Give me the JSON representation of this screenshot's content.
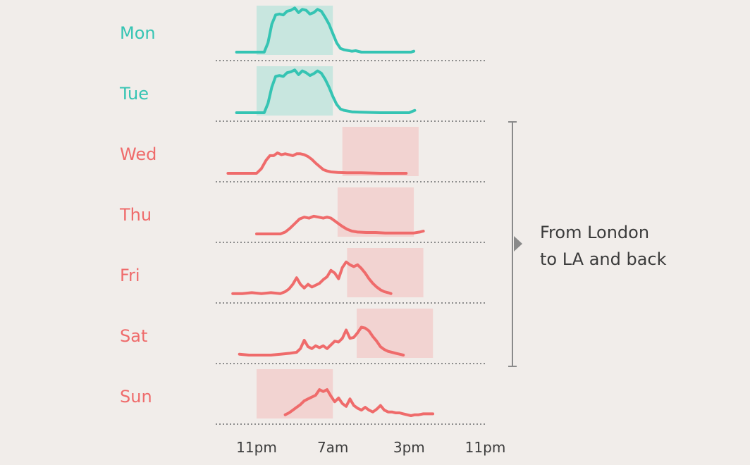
{
  "chart_data": {
    "type": "line",
    "colors": {
      "home": "#35c4b3",
      "home_fill": "#c8e6df",
      "travel": "#ef6b6b",
      "travel_fill": "#f2d3d1",
      "baseline": "#8c8c8c",
      "bracket": "#8a8a8a"
    },
    "x_ticks": [
      "11pm",
      "7am",
      "3pm",
      "11pm"
    ],
    "days": [
      {
        "label": "Mon",
        "group": "home",
        "band": [
          "11pm",
          "4am"
        ],
        "points": [
          [
            -2.1,
            0
          ],
          [
            0.8,
            0
          ],
          [
            1.2,
            0.2
          ],
          [
            1.6,
            0.6
          ],
          [
            2.0,
            0.8
          ],
          [
            2.4,
            0.82
          ],
          [
            2.8,
            0.8
          ],
          [
            3.2,
            0.88
          ],
          [
            3.6,
            0.9
          ],
          [
            4.0,
            0.95
          ],
          [
            4.4,
            0.85
          ],
          [
            4.8,
            0.92
          ],
          [
            5.2,
            0.9
          ],
          [
            5.6,
            0.82
          ],
          [
            6.0,
            0.85
          ],
          [
            6.4,
            0.92
          ],
          [
            6.8,
            0.88
          ],
          [
            7.2,
            0.75
          ],
          [
            7.6,
            0.6
          ],
          [
            8.0,
            0.4
          ],
          [
            8.4,
            0.2
          ],
          [
            8.8,
            0.08
          ],
          [
            9.2,
            0.05
          ],
          [
            10.0,
            0.02
          ],
          [
            10.4,
            0.03
          ],
          [
            11.0,
            0
          ],
          [
            13.0,
            0
          ],
          [
            15.0,
            0
          ],
          [
            16.2,
            0
          ],
          [
            16.5,
            0.02
          ]
        ]
      },
      {
        "label": "Tue",
        "group": "home",
        "band": [
          "11pm",
          "4am"
        ],
        "points": [
          [
            -2.1,
            0
          ],
          [
            0.8,
            0
          ],
          [
            1.2,
            0.2
          ],
          [
            1.6,
            0.55
          ],
          [
            2.0,
            0.78
          ],
          [
            2.4,
            0.8
          ],
          [
            2.8,
            0.78
          ],
          [
            3.2,
            0.86
          ],
          [
            3.6,
            0.88
          ],
          [
            4.0,
            0.92
          ],
          [
            4.4,
            0.82
          ],
          [
            4.8,
            0.9
          ],
          [
            5.2,
            0.86
          ],
          [
            5.6,
            0.8
          ],
          [
            6.0,
            0.84
          ],
          [
            6.4,
            0.9
          ],
          [
            6.8,
            0.85
          ],
          [
            7.2,
            0.72
          ],
          [
            7.6,
            0.55
          ],
          [
            8.0,
            0.35
          ],
          [
            8.4,
            0.18
          ],
          [
            8.8,
            0.08
          ],
          [
            9.2,
            0.05
          ],
          [
            10.0,
            0.02
          ],
          [
            11.0,
            0.01
          ],
          [
            13.0,
            0
          ],
          [
            15.0,
            0
          ],
          [
            16.0,
            0
          ],
          [
            16.6,
            0.05
          ]
        ]
      },
      {
        "label": "Wed",
        "group": "travel",
        "band": [
          "8am",
          "1pm"
        ],
        "points": [
          [
            -3.0,
            0
          ],
          [
            0,
            0
          ],
          [
            0.5,
            0.1
          ],
          [
            1.0,
            0.28
          ],
          [
            1.4,
            0.38
          ],
          [
            1.8,
            0.38
          ],
          [
            2.2,
            0.44
          ],
          [
            2.6,
            0.4
          ],
          [
            3.0,
            0.42
          ],
          [
            3.4,
            0.4
          ],
          [
            3.8,
            0.38
          ],
          [
            4.2,
            0.42
          ],
          [
            4.6,
            0.42
          ],
          [
            5.0,
            0.4
          ],
          [
            5.4,
            0.36
          ],
          [
            5.8,
            0.3
          ],
          [
            6.2,
            0.22
          ],
          [
            6.6,
            0.15
          ],
          [
            7.0,
            0.08
          ],
          [
            7.4,
            0.05
          ],
          [
            7.8,
            0.03
          ],
          [
            8.5,
            0.02
          ],
          [
            9.5,
            0.01
          ],
          [
            11.0,
            0.01
          ],
          [
            13.0,
            0
          ],
          [
            14.5,
            0
          ],
          [
            15.7,
            0
          ]
        ]
      },
      {
        "label": "Thu",
        "group": "travel",
        "band": [
          "7:30am",
          "12:30pm"
        ],
        "points": [
          [
            0,
            0
          ],
          [
            1.0,
            0
          ],
          [
            2.0,
            0
          ],
          [
            2.5,
            0
          ],
          [
            3.0,
            0.04
          ],
          [
            3.5,
            0.12
          ],
          [
            4.0,
            0.22
          ],
          [
            4.5,
            0.32
          ],
          [
            5.0,
            0.36
          ],
          [
            5.5,
            0.34
          ],
          [
            6.0,
            0.38
          ],
          [
            6.5,
            0.36
          ],
          [
            7.0,
            0.34
          ],
          [
            7.4,
            0.36
          ],
          [
            7.8,
            0.34
          ],
          [
            8.2,
            0.28
          ],
          [
            8.6,
            0.22
          ],
          [
            9.0,
            0.16
          ],
          [
            9.5,
            0.1
          ],
          [
            10.0,
            0.06
          ],
          [
            10.6,
            0.04
          ],
          [
            11.5,
            0.03
          ],
          [
            12.5,
            0.03
          ],
          [
            13.5,
            0.02
          ],
          [
            14.5,
            0.02
          ],
          [
            15.5,
            0.02
          ],
          [
            16.5,
            0.02
          ],
          [
            17.1,
            0.04
          ],
          [
            17.5,
            0.06
          ]
        ]
      },
      {
        "label": "Fri",
        "group": "travel",
        "band": [
          "8:30am",
          "1:30pm"
        ],
        "points": [
          [
            -2.5,
            0.02
          ],
          [
            -1.5,
            0.02
          ],
          [
            -0.5,
            0.04
          ],
          [
            0.5,
            0.02
          ],
          [
            1.5,
            0.04
          ],
          [
            2.5,
            0.02
          ],
          [
            3.0,
            0.06
          ],
          [
            3.4,
            0.12
          ],
          [
            3.8,
            0.22
          ],
          [
            4.2,
            0.36
          ],
          [
            4.6,
            0.22
          ],
          [
            5.0,
            0.14
          ],
          [
            5.4,
            0.22
          ],
          [
            5.8,
            0.16
          ],
          [
            6.2,
            0.2
          ],
          [
            6.6,
            0.24
          ],
          [
            7.0,
            0.32
          ],
          [
            7.4,
            0.38
          ],
          [
            7.8,
            0.52
          ],
          [
            8.2,
            0.46
          ],
          [
            8.6,
            0.34
          ],
          [
            9.0,
            0.58
          ],
          [
            9.4,
            0.7
          ],
          [
            9.8,
            0.64
          ],
          [
            10.2,
            0.6
          ],
          [
            10.6,
            0.64
          ],
          [
            11.0,
            0.56
          ],
          [
            11.4,
            0.46
          ],
          [
            11.8,
            0.34
          ],
          [
            12.2,
            0.24
          ],
          [
            12.6,
            0.16
          ],
          [
            13.0,
            0.1
          ],
          [
            13.4,
            0.06
          ],
          [
            13.8,
            0.04
          ],
          [
            14.1,
            0.02
          ]
        ]
      },
      {
        "label": "Sat",
        "group": "travel",
        "band": [
          "9:30am",
          "2:30pm"
        ],
        "points": [
          [
            -1.8,
            0.02
          ],
          [
            -0.8,
            0
          ],
          [
            0.5,
            0
          ],
          [
            1.5,
            0
          ],
          [
            2.5,
            0.02
          ],
          [
            3.5,
            0.04
          ],
          [
            4.2,
            0.06
          ],
          [
            4.6,
            0.14
          ],
          [
            5.0,
            0.32
          ],
          [
            5.4,
            0.18
          ],
          [
            5.8,
            0.14
          ],
          [
            6.2,
            0.2
          ],
          [
            6.6,
            0.16
          ],
          [
            7.0,
            0.2
          ],
          [
            7.4,
            0.14
          ],
          [
            7.8,
            0.22
          ],
          [
            8.2,
            0.3
          ],
          [
            8.6,
            0.28
          ],
          [
            9.0,
            0.36
          ],
          [
            9.4,
            0.54
          ],
          [
            9.8,
            0.36
          ],
          [
            10.2,
            0.38
          ],
          [
            10.6,
            0.48
          ],
          [
            11.0,
            0.6
          ],
          [
            11.4,
            0.58
          ],
          [
            11.8,
            0.52
          ],
          [
            12.2,
            0.4
          ],
          [
            12.6,
            0.3
          ],
          [
            13.0,
            0.18
          ],
          [
            13.4,
            0.12
          ],
          [
            13.8,
            0.08
          ],
          [
            14.2,
            0.06
          ],
          [
            14.6,
            0.04
          ],
          [
            15.0,
            0.02
          ],
          [
            15.4,
            0
          ]
        ]
      },
      {
        "label": "Sun",
        "group": "travel",
        "band": [
          "11pm",
          "4am"
        ],
        "points": [
          [
            3.0,
            0.02
          ],
          [
            3.4,
            0.06
          ],
          [
            3.8,
            0.12
          ],
          [
            4.2,
            0.18
          ],
          [
            4.6,
            0.24
          ],
          [
            5.0,
            0.32
          ],
          [
            5.4,
            0.36
          ],
          [
            5.8,
            0.4
          ],
          [
            6.2,
            0.44
          ],
          [
            6.6,
            0.56
          ],
          [
            7.0,
            0.52
          ],
          [
            7.4,
            0.56
          ],
          [
            7.8,
            0.42
          ],
          [
            8.2,
            0.3
          ],
          [
            8.6,
            0.38
          ],
          [
            9.0,
            0.26
          ],
          [
            9.4,
            0.2
          ],
          [
            9.8,
            0.36
          ],
          [
            10.2,
            0.22
          ],
          [
            10.6,
            0.16
          ],
          [
            11.0,
            0.12
          ],
          [
            11.4,
            0.18
          ],
          [
            11.8,
            0.12
          ],
          [
            12.2,
            0.08
          ],
          [
            12.6,
            0.14
          ],
          [
            13.0,
            0.22
          ],
          [
            13.4,
            0.12
          ],
          [
            13.8,
            0.08
          ],
          [
            14.2,
            0.08
          ],
          [
            14.6,
            0.06
          ],
          [
            15.0,
            0.06
          ],
          [
            15.4,
            0.04
          ],
          [
            15.8,
            0.02
          ],
          [
            16.2,
            0
          ],
          [
            16.6,
            0.02
          ],
          [
            17.0,
            0.02
          ],
          [
            17.5,
            0.04
          ],
          [
            18.0,
            0.04
          ],
          [
            18.5,
            0.04
          ]
        ]
      }
    ],
    "annotation": {
      "lines": [
        "From London",
        "to LA and back"
      ]
    }
  }
}
